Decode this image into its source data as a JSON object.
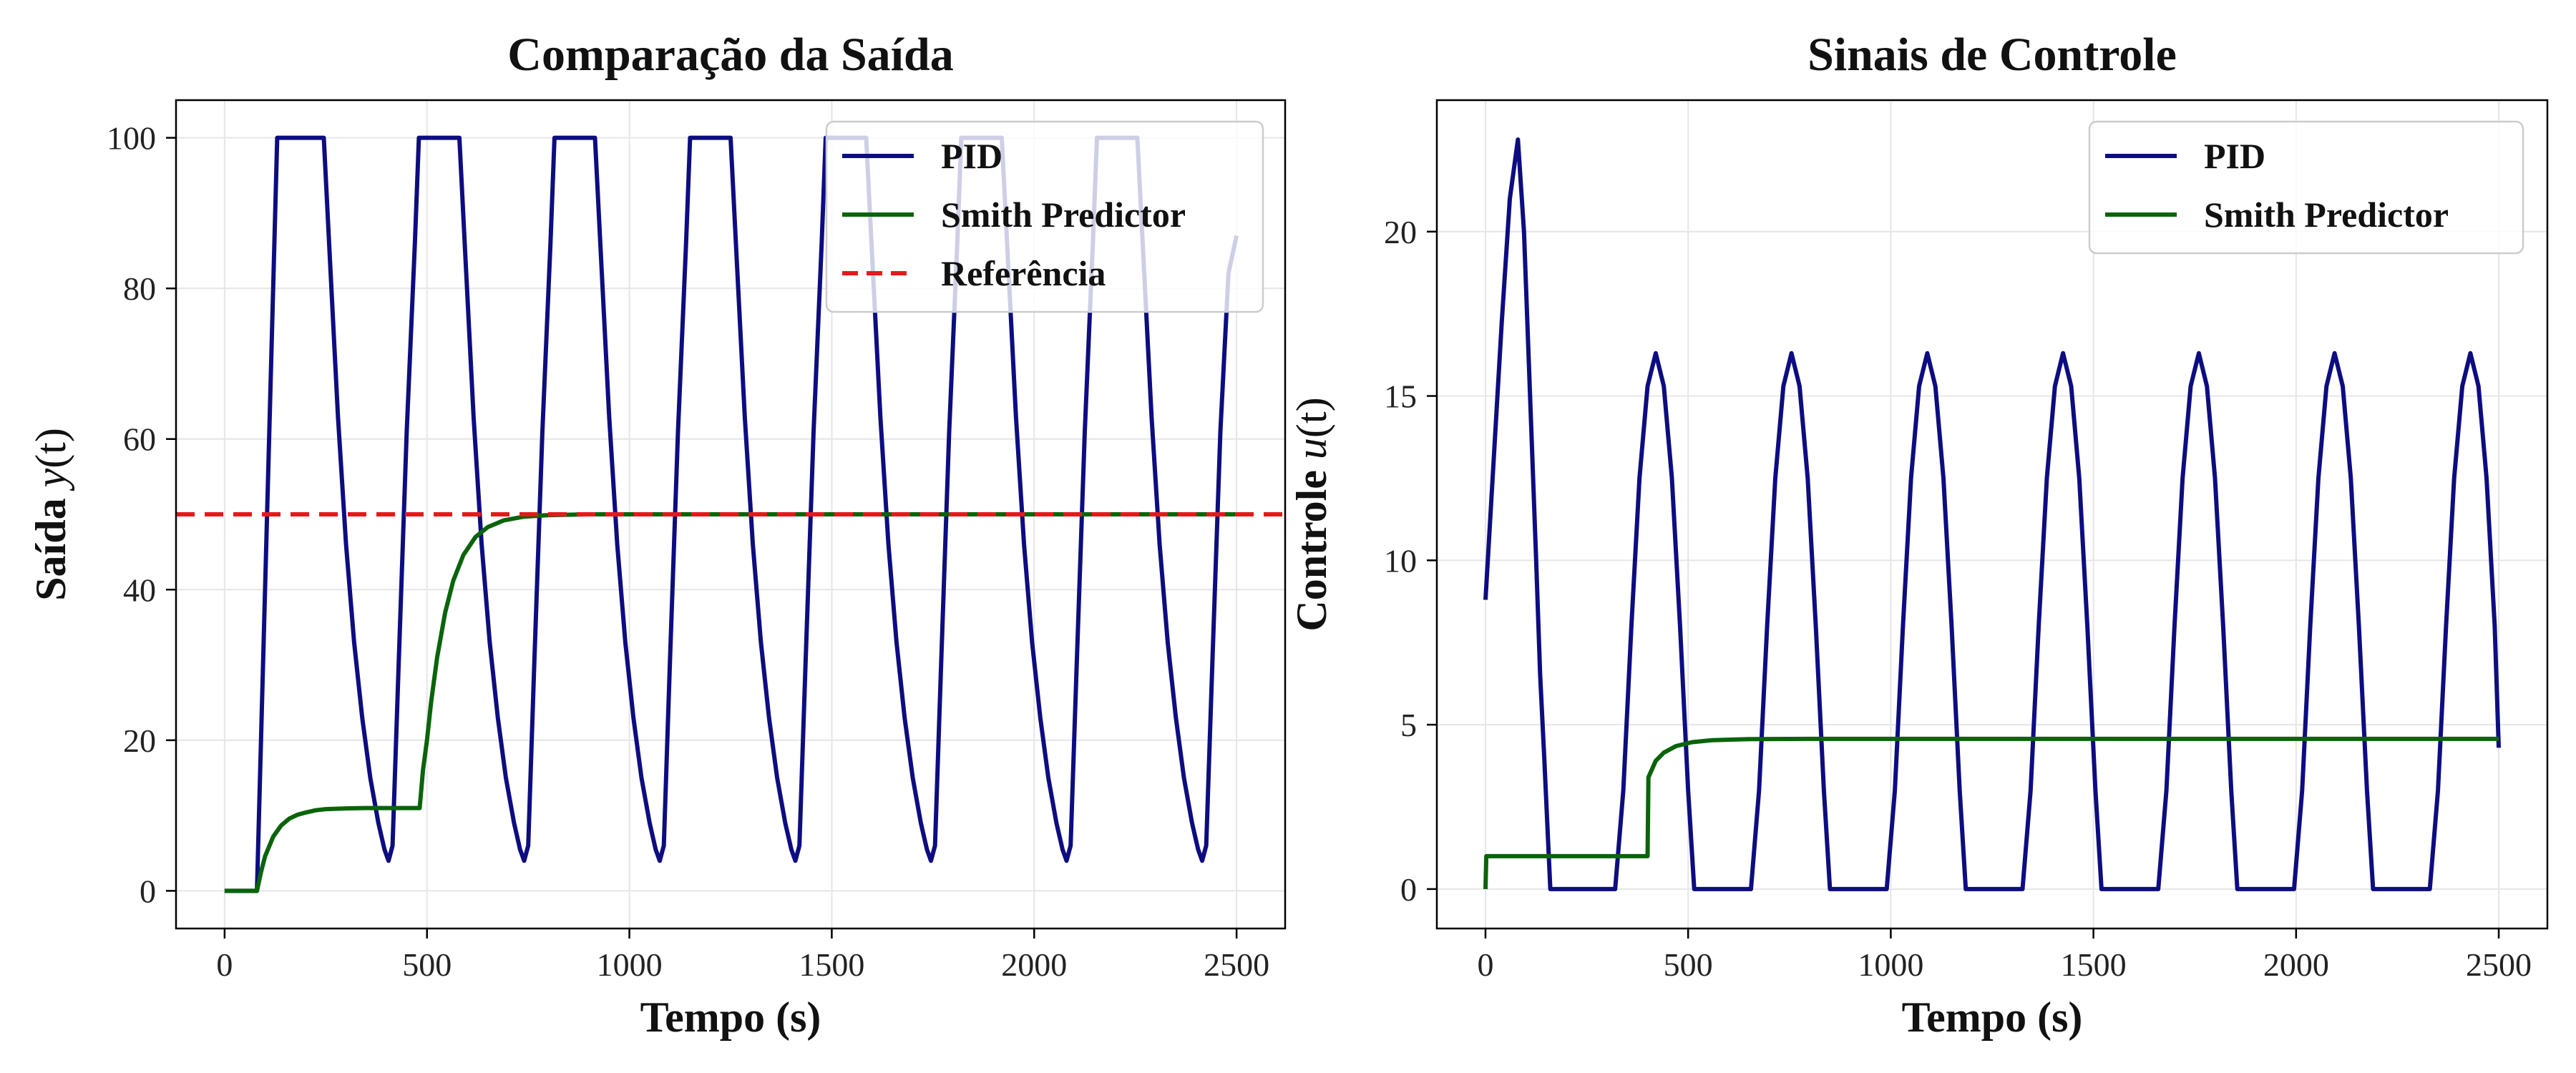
{
  "chart_data": [
    {
      "type": "line",
      "title": "Comparação da Saída",
      "xlabel": "Tempo (s)",
      "ylabel": "Saída y(t)",
      "ylabel_main": "Saída ",
      "ylabel_var": "y",
      "ylabel_arg": "(t)",
      "xlim": [
        -120,
        2620
      ],
      "ylim": [
        -5,
        105
      ],
      "xticks": [
        0,
        500,
        1000,
        1500,
        2000,
        2500
      ],
      "yticks": [
        0,
        20,
        40,
        60,
        80,
        100
      ],
      "grid": true,
      "legend_position": "upper-right",
      "series": [
        {
          "name": "PID",
          "color": "#0d0d80",
          "dash": "solid",
          "points": [
            [
              0,
              0
            ],
            [
              80,
              0
            ],
            [
              130,
              100
            ],
            [
              245,
              100
            ],
            [
              260,
              84
            ],
            [
              280,
              63
            ],
            [
              300,
              46
            ],
            [
              320,
              33
            ],
            [
              340,
              23
            ],
            [
              360,
              15
            ],
            [
              380,
              9
            ],
            [
              395,
              5.5
            ],
            [
              405,
              4
            ],
            [
              415,
              6
            ],
            [
              430,
              30
            ],
            [
              450,
              61
            ],
            [
              470,
              86
            ],
            [
              480,
              100
            ],
            [
              580,
              100
            ],
            [
              595,
              84
            ],
            [
              615,
              63
            ],
            [
              635,
              46
            ],
            [
              655,
              33
            ],
            [
              675,
              23
            ],
            [
              695,
              15
            ],
            [
              715,
              9
            ],
            [
              730,
              5.5
            ],
            [
              740,
              4
            ],
            [
              750,
              6
            ],
            [
              765,
              30
            ],
            [
              785,
              61
            ],
            [
              805,
              86
            ],
            [
              815,
              100
            ],
            [
              915,
              100
            ],
            [
              930,
              84
            ],
            [
              950,
              63
            ],
            [
              970,
              46
            ],
            [
              990,
              33
            ],
            [
              1010,
              23
            ],
            [
              1030,
              15
            ],
            [
              1050,
              9
            ],
            [
              1065,
              5.5
            ],
            [
              1075,
              4
            ],
            [
              1085,
              6
            ],
            [
              1100,
              30
            ],
            [
              1120,
              61
            ],
            [
              1140,
              86
            ],
            [
              1150,
              100
            ],
            [
              1250,
              100
            ],
            [
              1265,
              84
            ],
            [
              1285,
              63
            ],
            [
              1305,
              46
            ],
            [
              1325,
              33
            ],
            [
              1345,
              23
            ],
            [
              1365,
              15
            ],
            [
              1385,
              9
            ],
            [
              1400,
              5.5
            ],
            [
              1410,
              4
            ],
            [
              1420,
              6
            ],
            [
              1435,
              30
            ],
            [
              1455,
              61
            ],
            [
              1475,
              86
            ],
            [
              1485,
              100
            ],
            [
              1585,
              100
            ],
            [
              1600,
              84
            ],
            [
              1620,
              63
            ],
            [
              1640,
              46
            ],
            [
              1660,
              33
            ],
            [
              1680,
              23
            ],
            [
              1700,
              15
            ],
            [
              1720,
              9
            ],
            [
              1735,
              5.5
            ],
            [
              1745,
              4
            ],
            [
              1755,
              6
            ],
            [
              1770,
              30
            ],
            [
              1790,
              61
            ],
            [
              1810,
              86
            ],
            [
              1820,
              100
            ],
            [
              1920,
              100
            ],
            [
              1935,
              84
            ],
            [
              1955,
              63
            ],
            [
              1975,
              46
            ],
            [
              1995,
              33
            ],
            [
              2015,
              23
            ],
            [
              2035,
              15
            ],
            [
              2055,
              9
            ],
            [
              2070,
              5.5
            ],
            [
              2080,
              4
            ],
            [
              2090,
              6
            ],
            [
              2105,
              30
            ],
            [
              2125,
              61
            ],
            [
              2145,
              86
            ],
            [
              2155,
              100
            ],
            [
              2255,
              100
            ],
            [
              2270,
              84
            ],
            [
              2290,
              63
            ],
            [
              2310,
              46
            ],
            [
              2330,
              33
            ],
            [
              2350,
              23
            ],
            [
              2370,
              15
            ],
            [
              2390,
              9
            ],
            [
              2405,
              5.5
            ],
            [
              2415,
              4
            ],
            [
              2425,
              6
            ],
            [
              2440,
              30
            ],
            [
              2460,
              61
            ],
            [
              2480,
              82
            ],
            [
              2500,
              87
            ]
          ]
        },
        {
          "name": "Smith Predictor",
          "color": "#0a640a",
          "dash": "solid",
          "points": [
            [
              0,
              0
            ],
            [
              80,
              0
            ],
            [
              90,
              2.5
            ],
            [
              100,
              4.6
            ],
            [
              120,
              7.2
            ],
            [
              140,
              8.7
            ],
            [
              160,
              9.6
            ],
            [
              180,
              10.1
            ],
            [
              200,
              10.4
            ],
            [
              225,
              10.7
            ],
            [
              250,
              10.85
            ],
            [
              300,
              10.95
            ],
            [
              350,
              11
            ],
            [
              400,
              11
            ],
            [
              482,
              11
            ],
            [
              490,
              16
            ],
            [
              500,
              20
            ],
            [
              510,
              25
            ],
            [
              525,
              31
            ],
            [
              545,
              37
            ],
            [
              565,
              41.2
            ],
            [
              590,
              44.6
            ],
            [
              620,
              47
            ],
            [
              650,
              48.3
            ],
            [
              690,
              49.2
            ],
            [
              740,
              49.7
            ],
            [
              800,
              49.9
            ],
            [
              900,
              50
            ],
            [
              1000,
              50
            ],
            [
              1500,
              50
            ],
            [
              2000,
              50
            ],
            [
              2500,
              50
            ]
          ]
        },
        {
          "name": "Referência",
          "color": "#e31a1c",
          "dash": "dashed",
          "points": [
            [
              -120,
              50
            ],
            [
              2620,
              50
            ]
          ]
        }
      ]
    },
    {
      "type": "line",
      "title": "Sinais de Controle",
      "xlabel": "Tempo (s)",
      "ylabel": "Controle u(t)",
      "ylabel_main": "Controle ",
      "ylabel_var": "u",
      "ylabel_arg": "(t)",
      "xlim": [
        -120,
        2620
      ],
      "ylim": [
        -1.2,
        24
      ],
      "xticks": [
        0,
        500,
        1000,
        1500,
        2000,
        2500
      ],
      "yticks": [
        0,
        5,
        10,
        15,
        20
      ],
      "grid": true,
      "legend_position": "upper-right",
      "series": [
        {
          "name": "PID",
          "color": "#0d0d80",
          "dash": "solid",
          "points": [
            [
              0,
              8.8
            ],
            [
              20,
              13
            ],
            [
              40,
              17.2
            ],
            [
              60,
              21
            ],
            [
              80,
              22.8
            ],
            [
              95,
              20
            ],
            [
              110,
              15
            ],
            [
              125,
              10
            ],
            [
              135,
              6.5
            ],
            [
              145,
              4
            ],
            [
              160,
              0
            ],
            [
              320,
              0
            ],
            [
              340,
              3
            ],
            [
              360,
              8
            ],
            [
              380,
              12.5
            ],
            [
              400,
              15.3
            ],
            [
              420,
              16.3
            ],
            [
              440,
              15.3
            ],
            [
              460,
              12.5
            ],
            [
              480,
              8
            ],
            [
              500,
              3
            ],
            [
              515,
              0
            ],
            [
              655,
              0
            ],
            [
              675,
              3
            ],
            [
              695,
              8
            ],
            [
              715,
              12.5
            ],
            [
              735,
              15.3
            ],
            [
              755,
              16.3
            ],
            [
              775,
              15.3
            ],
            [
              795,
              12.5
            ],
            [
              815,
              8
            ],
            [
              835,
              3
            ],
            [
              850,
              0
            ],
            [
              990,
              0
            ],
            [
              1010,
              3
            ],
            [
              1030,
              8
            ],
            [
              1050,
              12.5
            ],
            [
              1070,
              15.3
            ],
            [
              1090,
              16.3
            ],
            [
              1110,
              15.3
            ],
            [
              1130,
              12.5
            ],
            [
              1150,
              8
            ],
            [
              1170,
              3
            ],
            [
              1185,
              0
            ],
            [
              1325,
              0
            ],
            [
              1345,
              3
            ],
            [
              1365,
              8
            ],
            [
              1385,
              12.5
            ],
            [
              1405,
              15.3
            ],
            [
              1425,
              16.3
            ],
            [
              1445,
              15.3
            ],
            [
              1465,
              12.5
            ],
            [
              1485,
              8
            ],
            [
              1505,
              3
            ],
            [
              1520,
              0
            ],
            [
              1660,
              0
            ],
            [
              1680,
              3
            ],
            [
              1700,
              8
            ],
            [
              1720,
              12.5
            ],
            [
              1740,
              15.3
            ],
            [
              1760,
              16.3
            ],
            [
              1780,
              15.3
            ],
            [
              1800,
              12.5
            ],
            [
              1820,
              8
            ],
            [
              1840,
              3
            ],
            [
              1855,
              0
            ],
            [
              1995,
              0
            ],
            [
              2015,
              3
            ],
            [
              2035,
              8
            ],
            [
              2055,
              12.5
            ],
            [
              2075,
              15.3
            ],
            [
              2095,
              16.3
            ],
            [
              2115,
              15.3
            ],
            [
              2135,
              12.5
            ],
            [
              2155,
              8
            ],
            [
              2175,
              3
            ],
            [
              2190,
              0
            ],
            [
              2330,
              0
            ],
            [
              2350,
              3
            ],
            [
              2370,
              8
            ],
            [
              2390,
              12.5
            ],
            [
              2410,
              15.3
            ],
            [
              2430,
              16.3
            ],
            [
              2450,
              15.3
            ],
            [
              2470,
              12.5
            ],
            [
              2490,
              8
            ],
            [
              2500,
              4.3
            ]
          ]
        },
        {
          "name": "Smith Predictor",
          "color": "#0a640a",
          "dash": "solid",
          "points": [
            [
              0,
              0
            ],
            [
              2,
              1
            ],
            [
              400,
              1
            ],
            [
              402,
              3.4
            ],
            [
              420,
              3.9
            ],
            [
              440,
              4.15
            ],
            [
              470,
              4.35
            ],
            [
              510,
              4.47
            ],
            [
              560,
              4.53
            ],
            [
              650,
              4.56
            ],
            [
              800,
              4.57
            ],
            [
              1000,
              4.57
            ],
            [
              1500,
              4.57
            ],
            [
              2000,
              4.57
            ],
            [
              2500,
              4.57
            ]
          ]
        }
      ]
    }
  ]
}
